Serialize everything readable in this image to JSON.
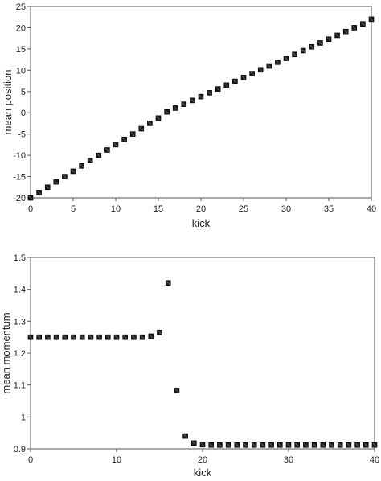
{
  "chart_data": [
    {
      "type": "scatter",
      "xlabel": "kick",
      "ylabel": "mean position",
      "xlim": [
        0,
        40
      ],
      "ylim": [
        -20,
        25
      ],
      "xticks": [
        0,
        5,
        10,
        15,
        20,
        25,
        30,
        35,
        40
      ],
      "yticks": [
        -20,
        -15,
        -10,
        -5,
        0,
        5,
        10,
        15,
        20,
        25
      ],
      "grid": false,
      "marker": "filled-square",
      "marker_color": "#1a1a1a",
      "series": [
        {
          "x": [
            0,
            1,
            2,
            3,
            4,
            5,
            6,
            7,
            8,
            9,
            10,
            11,
            12,
            13,
            14,
            15,
            16,
            17,
            18,
            19,
            20,
            21,
            22,
            23,
            24,
            25,
            26,
            27,
            28,
            29,
            30,
            31,
            32,
            33,
            34,
            35,
            36,
            37,
            38,
            39,
            40
          ],
          "y": [
            -20,
            -18.75,
            -17.5,
            -16.25,
            -15,
            -13.75,
            -12.5,
            -11.25,
            -10,
            -8.75,
            -7.5,
            -6.25,
            -5,
            -3.75,
            -2.5,
            -1.25,
            0.2,
            1.1,
            2.0,
            2.9,
            3.8,
            4.7,
            5.6,
            6.5,
            7.4,
            8.3,
            9.2,
            10.1,
            11.0,
            11.9,
            12.8,
            13.7,
            14.6,
            15.5,
            16.4,
            17.3,
            18.2,
            19.1,
            20.0,
            20.9,
            22.0
          ]
        }
      ]
    },
    {
      "type": "scatter",
      "xlabel": "kick",
      "ylabel": "mean momentum",
      "xlim": [
        0,
        40
      ],
      "ylim": [
        0.9,
        1.5
      ],
      "xticks": [
        0,
        10,
        20,
        30,
        40
      ],
      "yticks": [
        0.9,
        1,
        1.1,
        1.2,
        1.3,
        1.4,
        1.5
      ],
      "grid": false,
      "marker": "filled-square",
      "marker_color": "#1a1a1a",
      "series": [
        {
          "x": [
            0,
            1,
            2,
            3,
            4,
            5,
            6,
            7,
            8,
            9,
            10,
            11,
            12,
            13,
            14,
            15,
            16,
            17,
            18,
            19,
            20,
            21,
            22,
            23,
            24,
            25,
            26,
            27,
            28,
            29,
            30,
            31,
            32,
            33,
            34,
            35,
            36,
            37,
            38,
            39,
            40
          ],
          "y": [
            1.25,
            1.25,
            1.25,
            1.25,
            1.25,
            1.25,
            1.25,
            1.25,
            1.25,
            1.25,
            1.25,
            1.25,
            1.25,
            1.25,
            1.253,
            1.265,
            1.42,
            1.083,
            0.94,
            0.918,
            0.913,
            0.912,
            0.912,
            0.912,
            0.912,
            0.912,
            0.912,
            0.912,
            0.912,
            0.912,
            0.912,
            0.912,
            0.912,
            0.912,
            0.912,
            0.912,
            0.912,
            0.912,
            0.912,
            0.912,
            0.912
          ]
        }
      ]
    }
  ]
}
